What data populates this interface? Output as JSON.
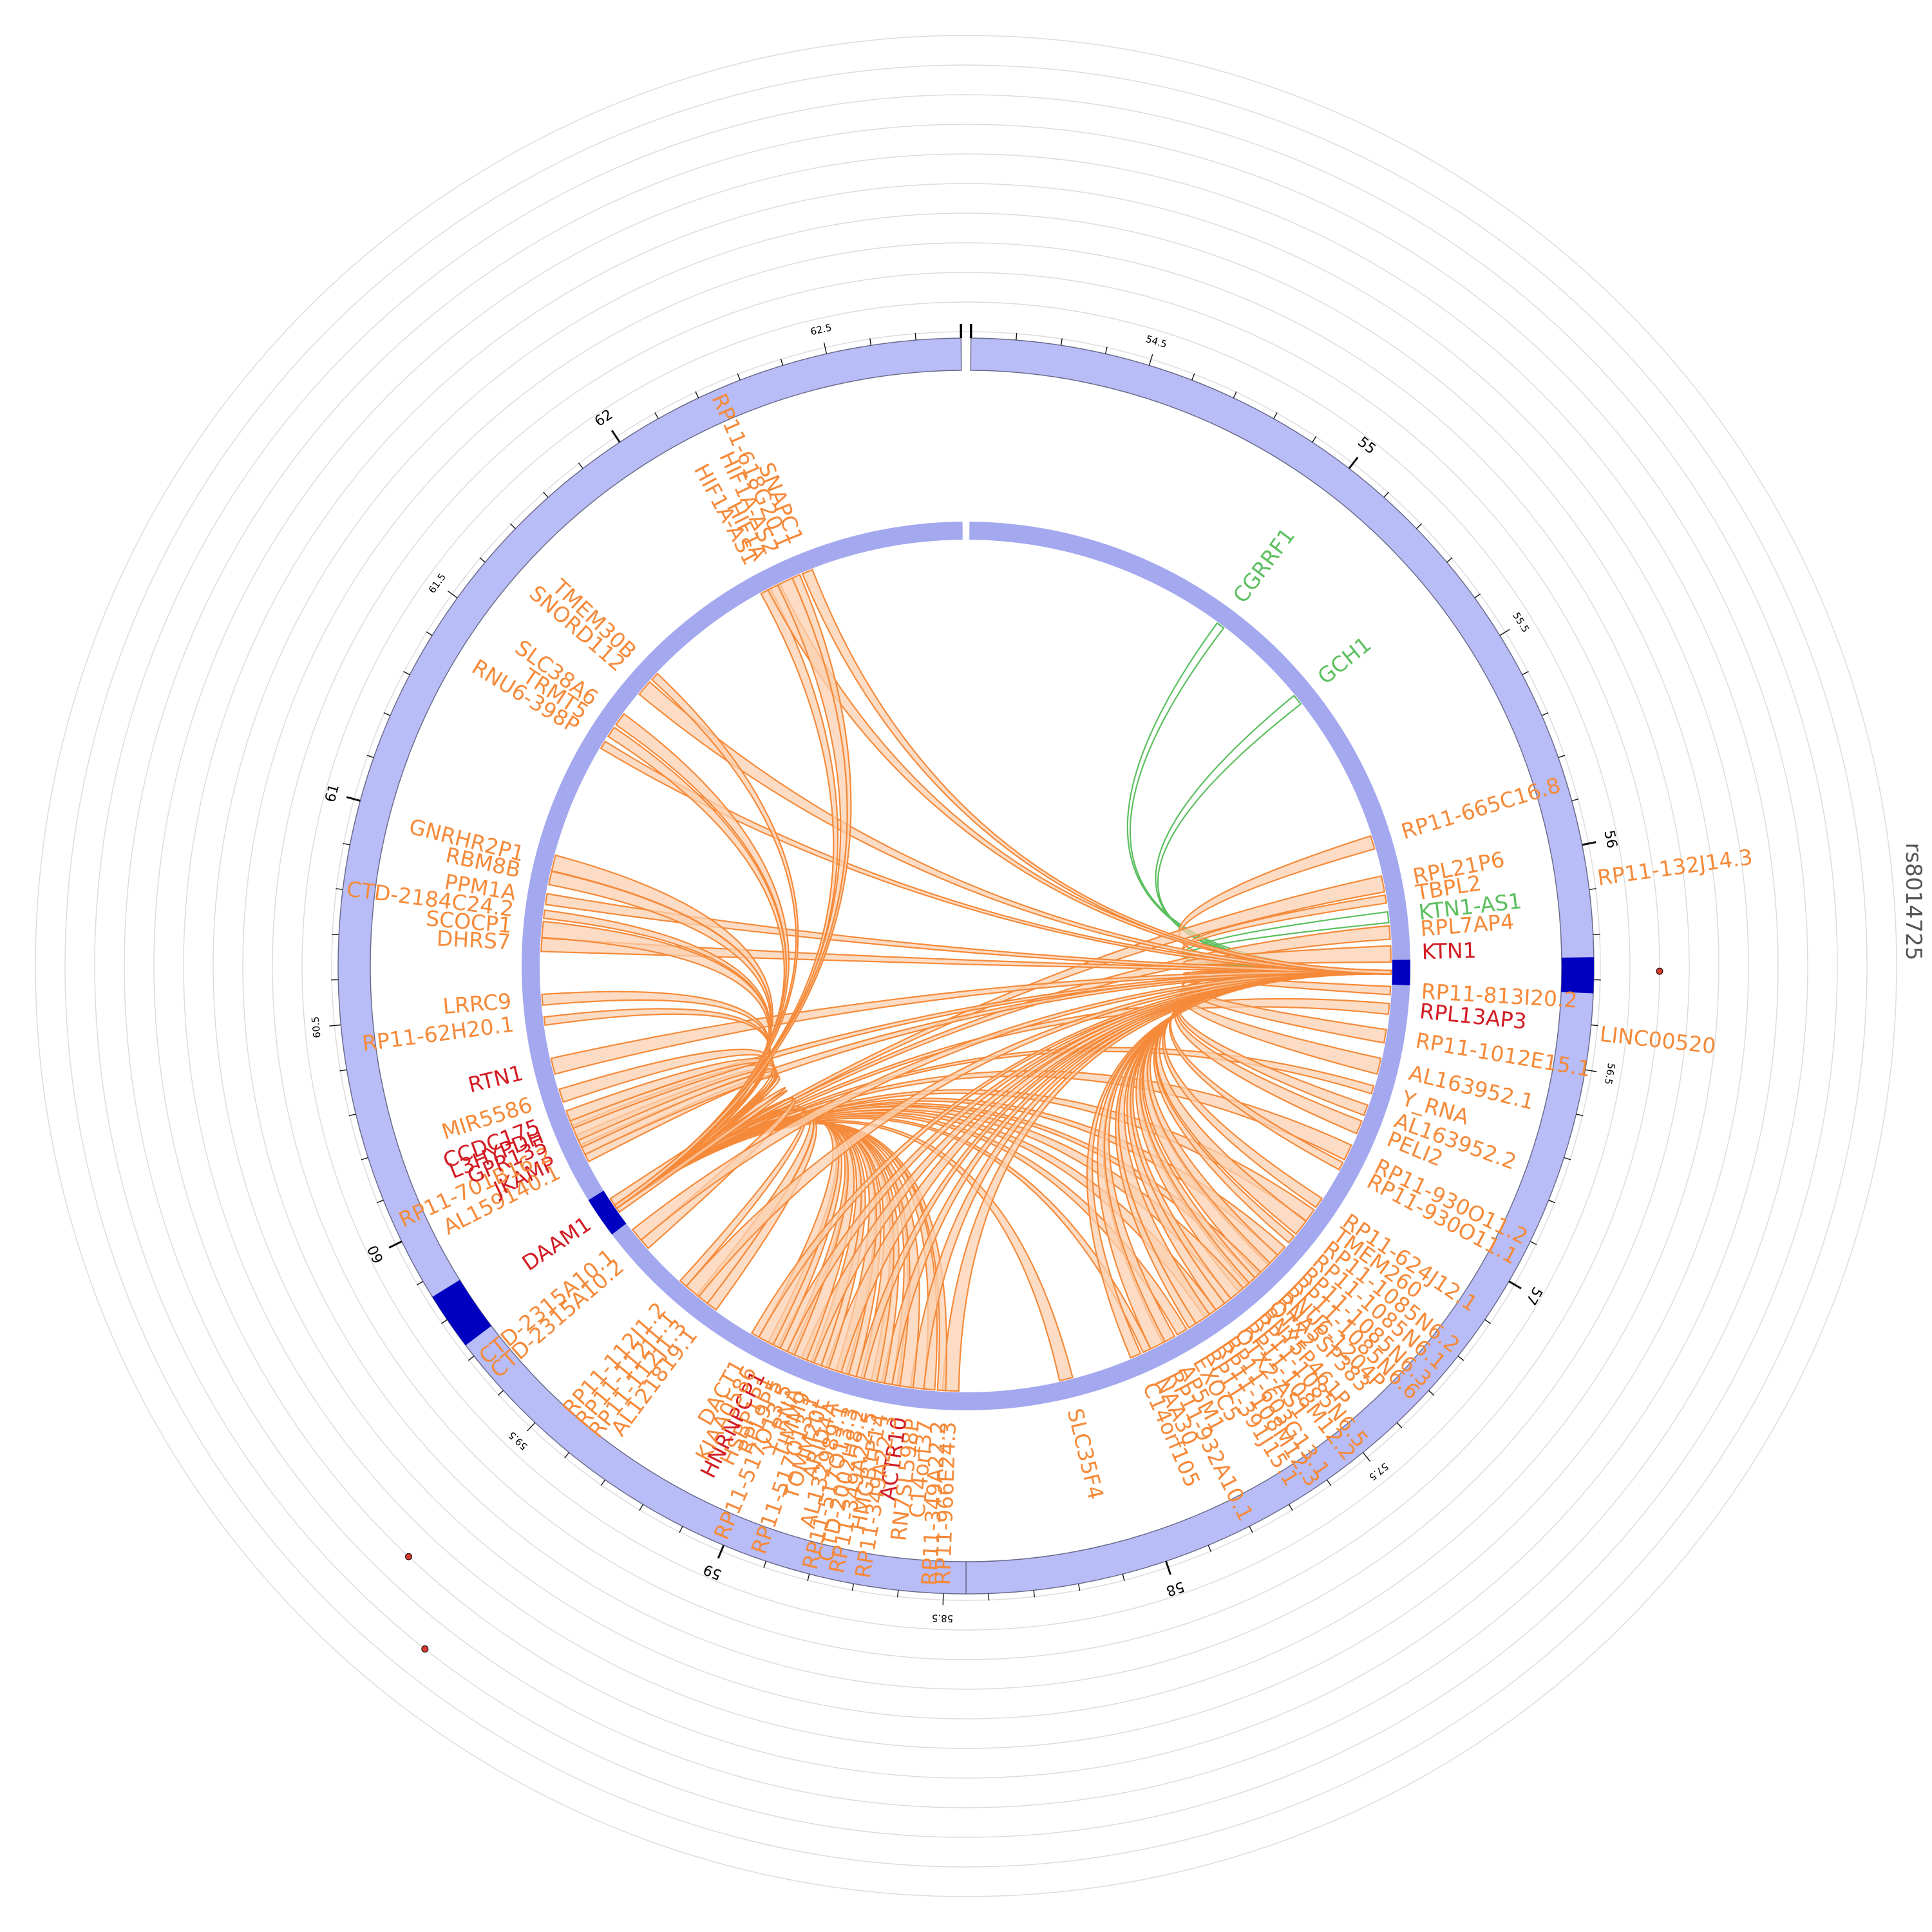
{
  "snp_label": "rs8014725",
  "colors": {
    "ring_fill": "#b8bcf7",
    "ring_stroke": "#6a6c8a",
    "inner_ring": "#a4a8ee",
    "highlight": "#0000c0",
    "orange": "#f58a3a",
    "orange_light": "#fbd0b0",
    "green": "#5cbf5f",
    "red": "#d21c24",
    "grid": "#dcdcdc",
    "snp_point": "#d43a2e"
  },
  "axis": {
    "start_mb": 54.1,
    "end_mb": 62.8,
    "major_ticks": [
      "55",
      "56",
      "57",
      "58",
      "59",
      "60",
      "61",
      "62"
    ],
    "minor_ticks": [
      "54.5",
      "55.5",
      "56.5",
      "57.5",
      "58.5",
      "59.5",
      "60.5",
      "61.5",
      "62.5"
    ]
  },
  "highlight_regions": [
    {
      "start_mb": 56.25,
      "end_mb": 56.33
    },
    {
      "start_mb": 59.73,
      "end_mb": 59.86
    }
  ],
  "genes": [
    {
      "name": "CGRRF1",
      "pos_mb": 54.98,
      "color": "green"
    },
    {
      "name": "GCH1",
      "pos_mb": 55.33,
      "color": "green"
    },
    {
      "name": "RP11-665C16.8",
      "pos_mb": 55.86,
      "color": "orange"
    },
    {
      "name": "RPL21P6",
      "pos_mb": 56.0,
      "color": "orange"
    },
    {
      "name": "TBPL2",
      "pos_mb": 56.05,
      "color": "orange"
    },
    {
      "name": "KTN1-AS1",
      "pos_mb": 56.11,
      "color": "green"
    },
    {
      "name": "RPL7AP4",
      "pos_mb": 56.16,
      "color": "orange"
    },
    {
      "name": "KTN1",
      "pos_mb": 56.23,
      "color": "red"
    },
    {
      "name": "RP11-813I20.2",
      "pos_mb": 56.35,
      "color": "orange"
    },
    {
      "name": "RPL13AP3",
      "pos_mb": 56.41,
      "color": "red"
    },
    {
      "name": "RP11-1012E15.1",
      "pos_mb": 56.5,
      "color": "orange"
    },
    {
      "name": "AL163952.1",
      "pos_mb": 56.6,
      "color": "orange"
    },
    {
      "name": "Y_RNA",
      "pos_mb": 56.68,
      "color": "orange"
    },
    {
      "name": "AL163952.2",
      "pos_mb": 56.75,
      "color": "orange"
    },
    {
      "name": "PELI2",
      "pos_mb": 56.81,
      "color": "orange"
    },
    {
      "name": "RP11-930O11.2",
      "pos_mb": 56.9,
      "color": "orange"
    },
    {
      "name": "RP11-930O11.1",
      "pos_mb": 56.95,
      "color": "orange"
    },
    {
      "name": "RP11-624J12.1",
      "pos_mb": 57.09,
      "color": "orange"
    },
    {
      "name": "TMEM260",
      "pos_mb": 57.14,
      "color": "orange"
    },
    {
      "name": "RP11-1085N6.2",
      "pos_mb": 57.19,
      "color": "orange"
    },
    {
      "name": "RP11-1085N6.1",
      "pos_mb": 57.24,
      "color": "orange"
    },
    {
      "name": "RP11-1085N6.3",
      "pos_mb": 57.29,
      "color": "orange"
    },
    {
      "name": "RP11-1085N6.6",
      "pos_mb": 57.33,
      "color": "orange"
    },
    {
      "name": "RNU6-1204P",
      "pos_mb": 57.37,
      "color": "orange"
    },
    {
      "name": "RNA5SP383",
      "pos_mb": 57.4,
      "color": "orange"
    },
    {
      "name": "OTX2",
      "pos_mb": 57.43,
      "color": "orange"
    },
    {
      "name": "RNY5P461P",
      "pos_mb": 57.46,
      "color": "orange"
    },
    {
      "name": "RP11-1085N6.5",
      "pos_mb": 57.49,
      "color": "orange"
    },
    {
      "name": "RP11-108M12.2",
      "pos_mb": 57.53,
      "color": "orange"
    },
    {
      "name": "OTX2-AS1",
      "pos_mb": 57.56,
      "color": "orange"
    },
    {
      "name": "RP11-603G13.1",
      "pos_mb": 57.6,
      "color": "orange"
    },
    {
      "name": "RP11-108M12.3",
      "pos_mb": 57.63,
      "color": "orange"
    },
    {
      "name": "RP11-391J15.1",
      "pos_mb": 57.67,
      "color": "orange"
    },
    {
      "name": "EXOC5",
      "pos_mb": 57.71,
      "color": "orange"
    },
    {
      "name": "AP5M1",
      "pos_mb": 57.76,
      "color": "orange"
    },
    {
      "name": "RP11-932A10.1",
      "pos_mb": 57.8,
      "color": "orange"
    },
    {
      "name": "NAA30",
      "pos_mb": 57.84,
      "color": "orange"
    },
    {
      "name": "C14orf105",
      "pos_mb": 57.88,
      "color": "orange"
    },
    {
      "name": "SLC35F4",
      "pos_mb": 58.12,
      "color": "orange"
    },
    {
      "name": "RP11-966E24.3",
      "pos_mb": 58.5,
      "color": "orange"
    },
    {
      "name": "RP11-349A22.2",
      "pos_mb": 58.53,
      "color": "orange"
    },
    {
      "name": "C14orf37",
      "pos_mb": 58.57,
      "color": "orange"
    },
    {
      "name": "RN7SL598P",
      "pos_mb": 58.61,
      "color": "orange"
    },
    {
      "name": "ACTR10",
      "pos_mb": 58.65,
      "color": "red"
    },
    {
      "name": "RP11-349A22.3",
      "pos_mb": 58.68,
      "color": "orange"
    },
    {
      "name": "HMGB1P14",
      "pos_mb": 58.71,
      "color": "orange"
    },
    {
      "name": "RP11-349A22.5",
      "pos_mb": 58.74,
      "color": "orange"
    },
    {
      "name": "CTD-2002H8.2",
      "pos_mb": 58.77,
      "color": "orange"
    },
    {
      "name": "RP11-517O13.3",
      "pos_mb": 58.8,
      "color": "orange"
    },
    {
      "name": "AL132989.1",
      "pos_mb": 58.83,
      "color": "orange"
    },
    {
      "name": "ARID4A",
      "pos_mb": 58.86,
      "color": "orange"
    },
    {
      "name": "TOMM20L",
      "pos_mb": 58.89,
      "color": "orange"
    },
    {
      "name": "RP11-517O13.1",
      "pos_mb": 58.92,
      "color": "orange"
    },
    {
      "name": "TIMM9",
      "pos_mb": 58.95,
      "color": "orange"
    },
    {
      "name": "Y_RNA",
      "pos_mb": 58.98,
      "color": "orange"
    },
    {
      "name": "RP11-517O13.5",
      "pos_mb": 59.01,
      "color": "orange"
    },
    {
      "name": "RPL9P5",
      "pos_mb": 59.04,
      "color": "orange"
    },
    {
      "name": "HSBP1P1",
      "pos_mb": 59.07,
      "color": "orange"
    },
    {
      "name": "HNRNPCP1",
      "pos_mb": 59.1,
      "color": "red"
    },
    {
      "name": "KIAA0586",
      "pos_mb": 59.13,
      "color": "orange"
    },
    {
      "name": "DACT1",
      "pos_mb": 59.17,
      "color": "orange"
    },
    {
      "name": "AL121819.1",
      "pos_mb": 59.34,
      "color": "orange"
    },
    {
      "name": "RP11-112J1.3",
      "pos_mb": 59.38,
      "color": "orange"
    },
    {
      "name": "RP11-112J1.1",
      "pos_mb": 59.42,
      "color": "orange"
    },
    {
      "name": "RP11-112J1.2",
      "pos_mb": 59.46,
      "color": "orange"
    },
    {
      "name": "CTD-2315A10.2",
      "pos_mb": 59.64,
      "color": "orange"
    },
    {
      "name": "CTD-2315A10.1",
      "pos_mb": 59.68,
      "color": "orange"
    },
    {
      "name": "DAAM1",
      "pos_mb": 59.8,
      "color": "red"
    },
    {
      "name": "AL159140.1",
      "pos_mb": 59.98,
      "color": "orange"
    },
    {
      "name": "JKAMP",
      "pos_mb": 60.01,
      "color": "red"
    },
    {
      "name": "RP11-701B16.2",
      "pos_mb": 60.04,
      "color": "orange"
    },
    {
      "name": "GPR135",
      "pos_mb": 60.07,
      "color": "red"
    },
    {
      "name": "L3HYPDH",
      "pos_mb": 60.1,
      "color": "red"
    },
    {
      "name": "CCDC175",
      "pos_mb": 60.13,
      "color": "red"
    },
    {
      "name": "MIR5586",
      "pos_mb": 60.2,
      "color": "orange"
    },
    {
      "name": "RTN1",
      "pos_mb": 60.3,
      "color": "red"
    },
    {
      "name": "RP11-62H20.1",
      "pos_mb": 60.45,
      "color": "orange"
    },
    {
      "name": "LRRC9",
      "pos_mb": 60.52,
      "color": "orange"
    },
    {
      "name": "DHRS7",
      "pos_mb": 60.7,
      "color": "orange"
    },
    {
      "name": "SCOCP1",
      "pos_mb": 60.75,
      "color": "orange"
    },
    {
      "name": "CTD-2184C24.2",
      "pos_mb": 60.8,
      "color": "orange"
    },
    {
      "name": "PPM1A",
      "pos_mb": 60.85,
      "color": "orange"
    },
    {
      "name": "RBM8B",
      "pos_mb": 60.92,
      "color": "orange"
    },
    {
      "name": "GNRHR2P1",
      "pos_mb": 60.97,
      "color": "orange"
    },
    {
      "name": "RNU6-398P",
      "pos_mb": 61.39,
      "color": "orange"
    },
    {
      "name": "TRMT5",
      "pos_mb": 61.44,
      "color": "orange"
    },
    {
      "name": "SLC38A6",
      "pos_mb": 61.49,
      "color": "orange"
    },
    {
      "name": "SNORD112",
      "pos_mb": 61.62,
      "color": "orange"
    },
    {
      "name": "TMEM30B",
      "pos_mb": 61.67,
      "color": "orange"
    },
    {
      "name": "HIF1A-AS1",
      "pos_mb": 62.13,
      "color": "orange"
    },
    {
      "name": "HIF1A",
      "pos_mb": 62.16,
      "color": "orange"
    },
    {
      "name": "HIF1A-AS2",
      "pos_mb": 62.2,
      "color": "orange"
    },
    {
      "name": "RP11-618G20.1",
      "pos_mb": 62.24,
      "color": "orange"
    },
    {
      "name": "SNAPC1",
      "pos_mb": 62.28,
      "color": "orange"
    },
    {
      "name": "RP11-132J14.3",
      "pos_mb": 56.08,
      "color": "orange"
    },
    {
      "name": "LINC00520",
      "pos_mb": 56.42,
      "color": "orange"
    }
  ],
  "snp_points": [
    {
      "pos_mb": 56.28,
      "track": 2
    },
    {
      "pos_mb": 59.5,
      "track": 6
    },
    {
      "pos_mb": 59.38,
      "track": 8
    }
  ]
}
